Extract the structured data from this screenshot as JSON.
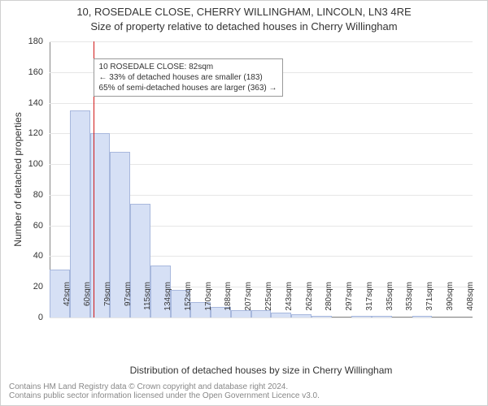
{
  "title_line1": "10, ROSEDALE CLOSE, CHERRY WILLINGHAM, LINCOLN, LN3 4RE",
  "title_line2": "Size of property relative to detached houses in Cherry Willingham",
  "ylabel": "Number of detached properties",
  "xlabel": "Distribution of detached houses by size in Cherry Willingham",
  "footer_line1": "Contains HM Land Registry data © Crown copyright and database right 2024.",
  "footer_line2": "Contains public sector information licensed under the Open Government Licence v3.0.",
  "title_fontsize": 13,
  "axis_label_fontsize": 12,
  "tick_fontsize": 11,
  "xtick_fontsize": 10,
  "footer_fontsize": 10,
  "background_color": "#ffffff",
  "grid_color": "#e6e6e6",
  "axis_color": "#888888",
  "bar_fill": "#d6e0f5",
  "bar_stroke": "#a8b8dd",
  "marker_color": "#d11919",
  "annotation_bg": "#ffffff",
  "annotation_border": "#999999",
  "ylim": [
    0,
    180
  ],
  "ytick_step": 20,
  "yticks": [
    0,
    20,
    40,
    60,
    80,
    100,
    120,
    140,
    160,
    180
  ],
  "chart": {
    "type": "histogram",
    "bars": [
      {
        "label": "42sqm",
        "value": 31
      },
      {
        "label": "60sqm",
        "value": 135
      },
      {
        "label": "79sqm",
        "value": 120
      },
      {
        "label": "97sqm",
        "value": 108
      },
      {
        "label": "115sqm",
        "value": 74
      },
      {
        "label": "134sqm",
        "value": 34
      },
      {
        "label": "152sqm",
        "value": 18
      },
      {
        "label": "170sqm",
        "value": 10
      },
      {
        "label": "188sqm",
        "value": 7
      },
      {
        "label": "207sqm",
        "value": 5
      },
      {
        "label": "225sqm",
        "value": 5
      },
      {
        "label": "243sqm",
        "value": 3
      },
      {
        "label": "262sqm",
        "value": 2
      },
      {
        "label": "280sqm",
        "value": 1
      },
      {
        "label": "297sqm",
        "value": 0
      },
      {
        "label": "317sqm",
        "value": 1
      },
      {
        "label": "335sqm",
        "value": 1
      },
      {
        "label": "353sqm",
        "value": 0
      },
      {
        "label": "371sqm",
        "value": 1
      },
      {
        "label": "390sqm",
        "value": 0
      },
      {
        "label": "408sqm",
        "value": 0
      }
    ]
  },
  "marker": {
    "value_sqm": 82,
    "at_bar_index": 2,
    "fraction_into_bar": 0.17
  },
  "annotation": {
    "line1": "10 ROSEDALE CLOSE: 82sqm",
    "line2": "← 33% of detached houses are smaller (183)",
    "line3": "65% of semi-detached houses are larger (363) →",
    "top_value": 170,
    "left_bar_index": 2
  }
}
